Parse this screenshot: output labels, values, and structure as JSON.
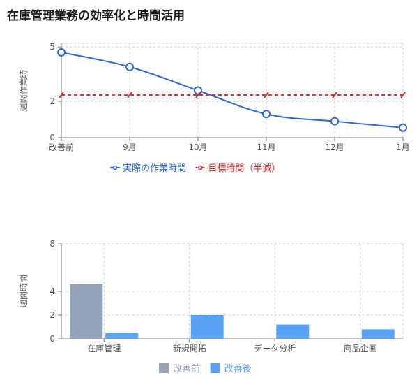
{
  "title": "在庫管理業務の効率化と時間活用",
  "chart_data": [
    {
      "type": "line",
      "ylabel": "週間作業時",
      "xlabel": "",
      "categories": [
        "改善前",
        "9月",
        "10月",
        "11月",
        "12月",
        "1月"
      ],
      "yticks": [
        0,
        2,
        5
      ],
      "ylim": [
        0,
        5.2
      ],
      "grid": true,
      "legend_position": "bottom",
      "series": [
        {
          "name": "実際の作業時間",
          "values": [
            4.7,
            3.9,
            2.6,
            1.3,
            0.9,
            0.55
          ],
          "color": "#2f67d8",
          "style": "solid"
        },
        {
          "name": "目標時間（半減）",
          "values": [
            2.35,
            2.35,
            2.35,
            2.35,
            2.35,
            2.35
          ],
          "color": "#d93030",
          "style": "dashed"
        }
      ]
    },
    {
      "type": "bar",
      "ylabel": "週間時間",
      "xlabel": "",
      "categories": [
        "在庫管理",
        "新規開拓",
        "データ分析",
        "商品企画"
      ],
      "yticks": [
        0,
        2,
        4,
        8
      ],
      "ylim": [
        0,
        8
      ],
      "grid": true,
      "legend_position": "bottom",
      "series": [
        {
          "name": "改善前",
          "values": [
            4.6,
            0,
            0,
            0
          ],
          "color": "#94a3b8"
        },
        {
          "name": "改善後",
          "values": [
            0.5,
            2.0,
            1.2,
            0.8
          ],
          "color": "#5aa2f7"
        }
      ]
    }
  ]
}
